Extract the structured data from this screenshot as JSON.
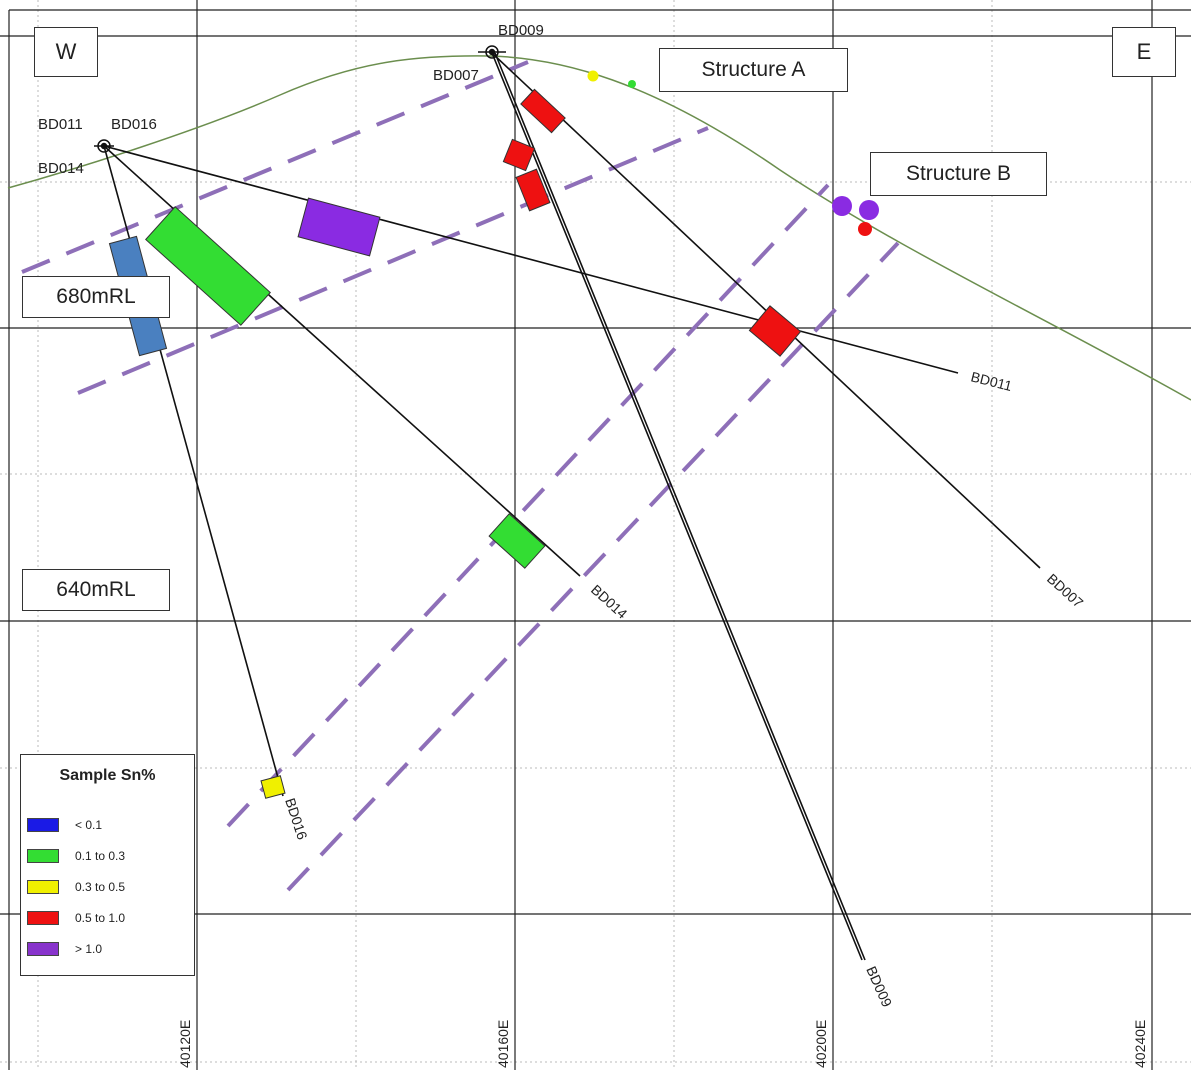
{
  "orientation": {
    "west": "W",
    "east": "E"
  },
  "structures": {
    "a": "Structure  A",
    "b": "Structure  B"
  },
  "rl_labels": {
    "upper": "680mRL",
    "lower": "640mRL"
  },
  "easting_labels": [
    "40120E",
    "40160E",
    "40200E",
    "40240E"
  ],
  "collar_labels": {
    "bd009": "BD009",
    "bd007": "BD007",
    "bd011": "BD011",
    "bd016": "BD016",
    "bd014": "BD014"
  },
  "hole_labels": {
    "bd011": "BD011",
    "bd014": "BD014",
    "bd007": "BD007",
    "bd016": "BD016",
    "bd009": "BD009"
  },
  "legend": {
    "title": "Sample Sn%",
    "items": [
      {
        "label": "< 0.1",
        "color": "#1a1ae6"
      },
      {
        "label": "0.1 to 0.3",
        "color": "#33dd33"
      },
      {
        "label": "0.3 to 0.5",
        "color": "#f0f000"
      },
      {
        "label": "0.5 to 1.0",
        "color": "#ee1111"
      },
      {
        "label": "> 1.0",
        "color": "#8833cc"
      }
    ]
  },
  "colors": {
    "topography": "#6b8e4e",
    "structure_dash": "#8e6fb8",
    "blue_interval": "#4a80c0",
    "green": "#33dd33",
    "yellow": "#f0f000",
    "red": "#ee1111",
    "purple": "#8a2be2"
  }
}
